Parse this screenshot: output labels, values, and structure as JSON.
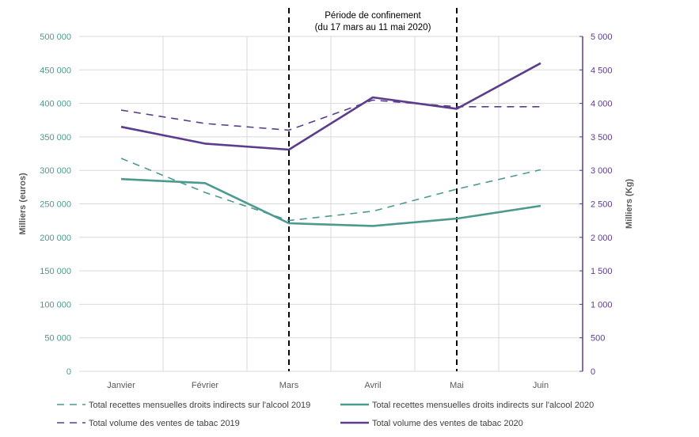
{
  "chart_data": {
    "type": "line",
    "categories": [
      "Janvier",
      "Février",
      "Mars",
      "Avril",
      "Mai",
      "Juin"
    ],
    "y_left": {
      "label": "Milliers (euros)",
      "ylim": [
        0,
        500000
      ],
      "ticks": [
        "0",
        "50 000",
        "100 000",
        "150 000",
        "200 000",
        "250 000",
        "300 000",
        "350 000",
        "400 000",
        "450 000",
        "500 000"
      ],
      "color": "#4c9a8f"
    },
    "y_right": {
      "label": "Milliers (Kg)",
      "ylim": [
        0,
        5000
      ],
      "ticks": [
        "0",
        "500",
        "1 000",
        "1 500",
        "2 000",
        "2 500",
        "3 000",
        "3 500",
        "4 000",
        "4 500",
        "5 000"
      ],
      "color": "#5b3d8c"
    },
    "series": [
      {
        "name": "Total recettes mensuelles droits indirects sur l'alcool 2019",
        "axis": "left",
        "style": "dashed",
        "color": "#4c9a8f",
        "values": [
          318000,
          267000,
          225000,
          239000,
          272000,
          301000
        ]
      },
      {
        "name": "Total recettes mensuelles droits indirects sur l'alcool 2020",
        "axis": "left",
        "style": "solid",
        "color": "#4c9a8f",
        "values": [
          287000,
          281000,
          221000,
          217000,
          228000,
          247000
        ]
      },
      {
        "name": "Total volume des ventes de tabac 2019",
        "axis": "right",
        "style": "dashed",
        "color": "#5b3d8c",
        "values": [
          3900,
          3700,
          3600,
          4050,
          3950,
          3950
        ]
      },
      {
        "name": "Total volume des ventes de tabac 2020",
        "axis": "right",
        "style": "solid",
        "color": "#5b3d8c",
        "values": [
          3650,
          3400,
          3310,
          4090,
          3920,
          4600
        ]
      }
    ],
    "annotation": {
      "line1": "Période de confinement",
      "line2": "(du 17 mars au 11 mai 2020)",
      "from_category": "Mars",
      "to_category": "Mai"
    },
    "grid": true,
    "legend_position": "bottom"
  }
}
